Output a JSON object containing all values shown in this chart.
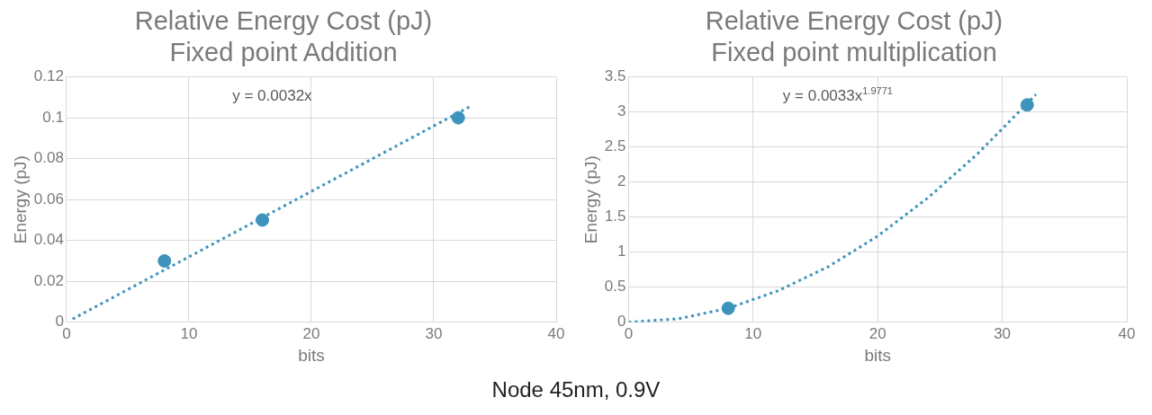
{
  "chart_data": [
    {
      "type": "scatter",
      "title": "Relative Energy Cost (pJ)",
      "subtitle": "Fixed point Addition",
      "xlabel": "bits",
      "ylabel": "Energy (pJ)",
      "annotations": [
        "y = 0.0032x",
        "Node 45nm, 0.9V"
      ],
      "xlim": [
        0,
        40
      ],
      "xticks": [
        0,
        10,
        20,
        30,
        40
      ],
      "ylim": [
        0,
        0.12
      ],
      "yticks": [
        0,
        0.02,
        0.04,
        0.06,
        0.08,
        0.1,
        0.12
      ],
      "grid": true,
      "legend": false,
      "series": [
        {
          "type": "scatter",
          "color": "#3d93bb",
          "marker": "circle",
          "x": [
            8,
            16,
            32
          ],
          "values": [
            0.03,
            0.05,
            0.1
          ]
        },
        {
          "type": "line",
          "color": "#3d93bb",
          "marker": "none",
          "line_style": "dotted",
          "x": [
            0.5,
            33
          ],
          "values": [
            0.0016,
            0.1056
          ]
        }
      ]
    },
    {
      "type": "scatter",
      "title": "Relative Energy Cost (pJ)",
      "subtitle": "Fixed point multiplication",
      "xlabel": "bits",
      "ylabel": "Energy (pJ)",
      "annotations": [
        "y = 0.0033x$^{1.9771}$"
      ],
      "xlim": [
        0,
        40
      ],
      "xticks": [
        0,
        10,
        20,
        30,
        40
      ],
      "ylim": [
        0,
        3.5
      ],
      "yticks": [
        0,
        0.5,
        1,
        1.5,
        2,
        2.5,
        3,
        3.5
      ],
      "grid": true,
      "legend": false,
      "series": [
        {
          "type": "scatter",
          "color": "#3d93bb",
          "marker": "circle",
          "x": [
            8,
            32
          ],
          "values": [
            0.2,
            3.1
          ]
        },
        {
          "type": "line",
          "color": "#3d93bb",
          "marker": "none",
          "line_style": "dotted",
          "x": [
            0,
            4,
            8,
            12,
            16,
            20,
            24,
            28,
            32,
            32.7
          ],
          "values": [
            0,
            0.05,
            0.2,
            0.45,
            0.79,
            1.23,
            1.77,
            2.4,
            3.12,
            3.25
          ]
        }
      ]
    }
  ]
}
